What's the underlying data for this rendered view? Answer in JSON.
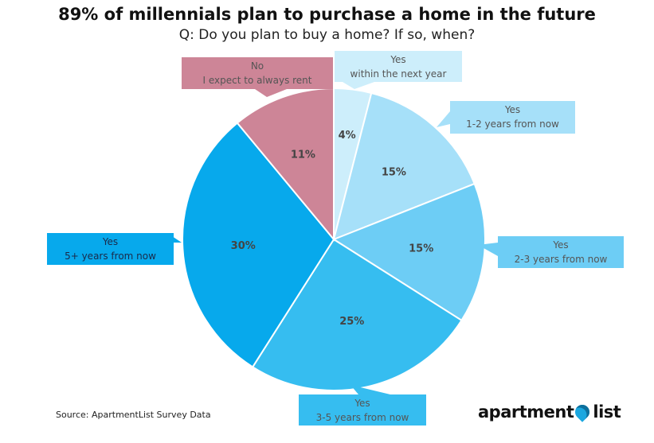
{
  "chart_data": {
    "type": "pie",
    "title": "89% of millennials plan to purchase a home in the future",
    "subtitle": "Q: Do you plan to buy a home? If so, when?",
    "start": "top",
    "direction": "clockwise",
    "slices": [
      {
        "label_line1": "Yes",
        "label_line2": "within the next year",
        "value": 4,
        "value_label": "4%",
        "color": "#cdeefb",
        "text_color": "#555555"
      },
      {
        "label_line1": "Yes",
        "label_line2": "1-2 years from now",
        "value": 15,
        "value_label": "15%",
        "color": "#a6e0f9",
        "text_color": "#555555"
      },
      {
        "label_line1": "Yes",
        "label_line2": "2-3 years from now",
        "value": 15,
        "value_label": "15%",
        "color": "#6dcdf5",
        "text_color": "#555555"
      },
      {
        "label_line1": "Yes",
        "label_line2": "3-5 years from now",
        "value": 25,
        "value_label": "25%",
        "color": "#36bdf0",
        "text_color": "#555555"
      },
      {
        "label_line1": "Yes",
        "label_line2": "5+ years from now",
        "value": 30,
        "value_label": "30%",
        "color": "#07a9ec",
        "text_color": "#1a2a4a"
      },
      {
        "label_line1": "No",
        "label_line2": "I expect to always rent",
        "value": 11,
        "value_label": "11%",
        "color": "#cd8597",
        "text_color": "#555555"
      }
    ]
  },
  "footer": {
    "source": "Source: ApartmentList Survey Data",
    "logo_left": "apartment",
    "logo_right": "list"
  }
}
